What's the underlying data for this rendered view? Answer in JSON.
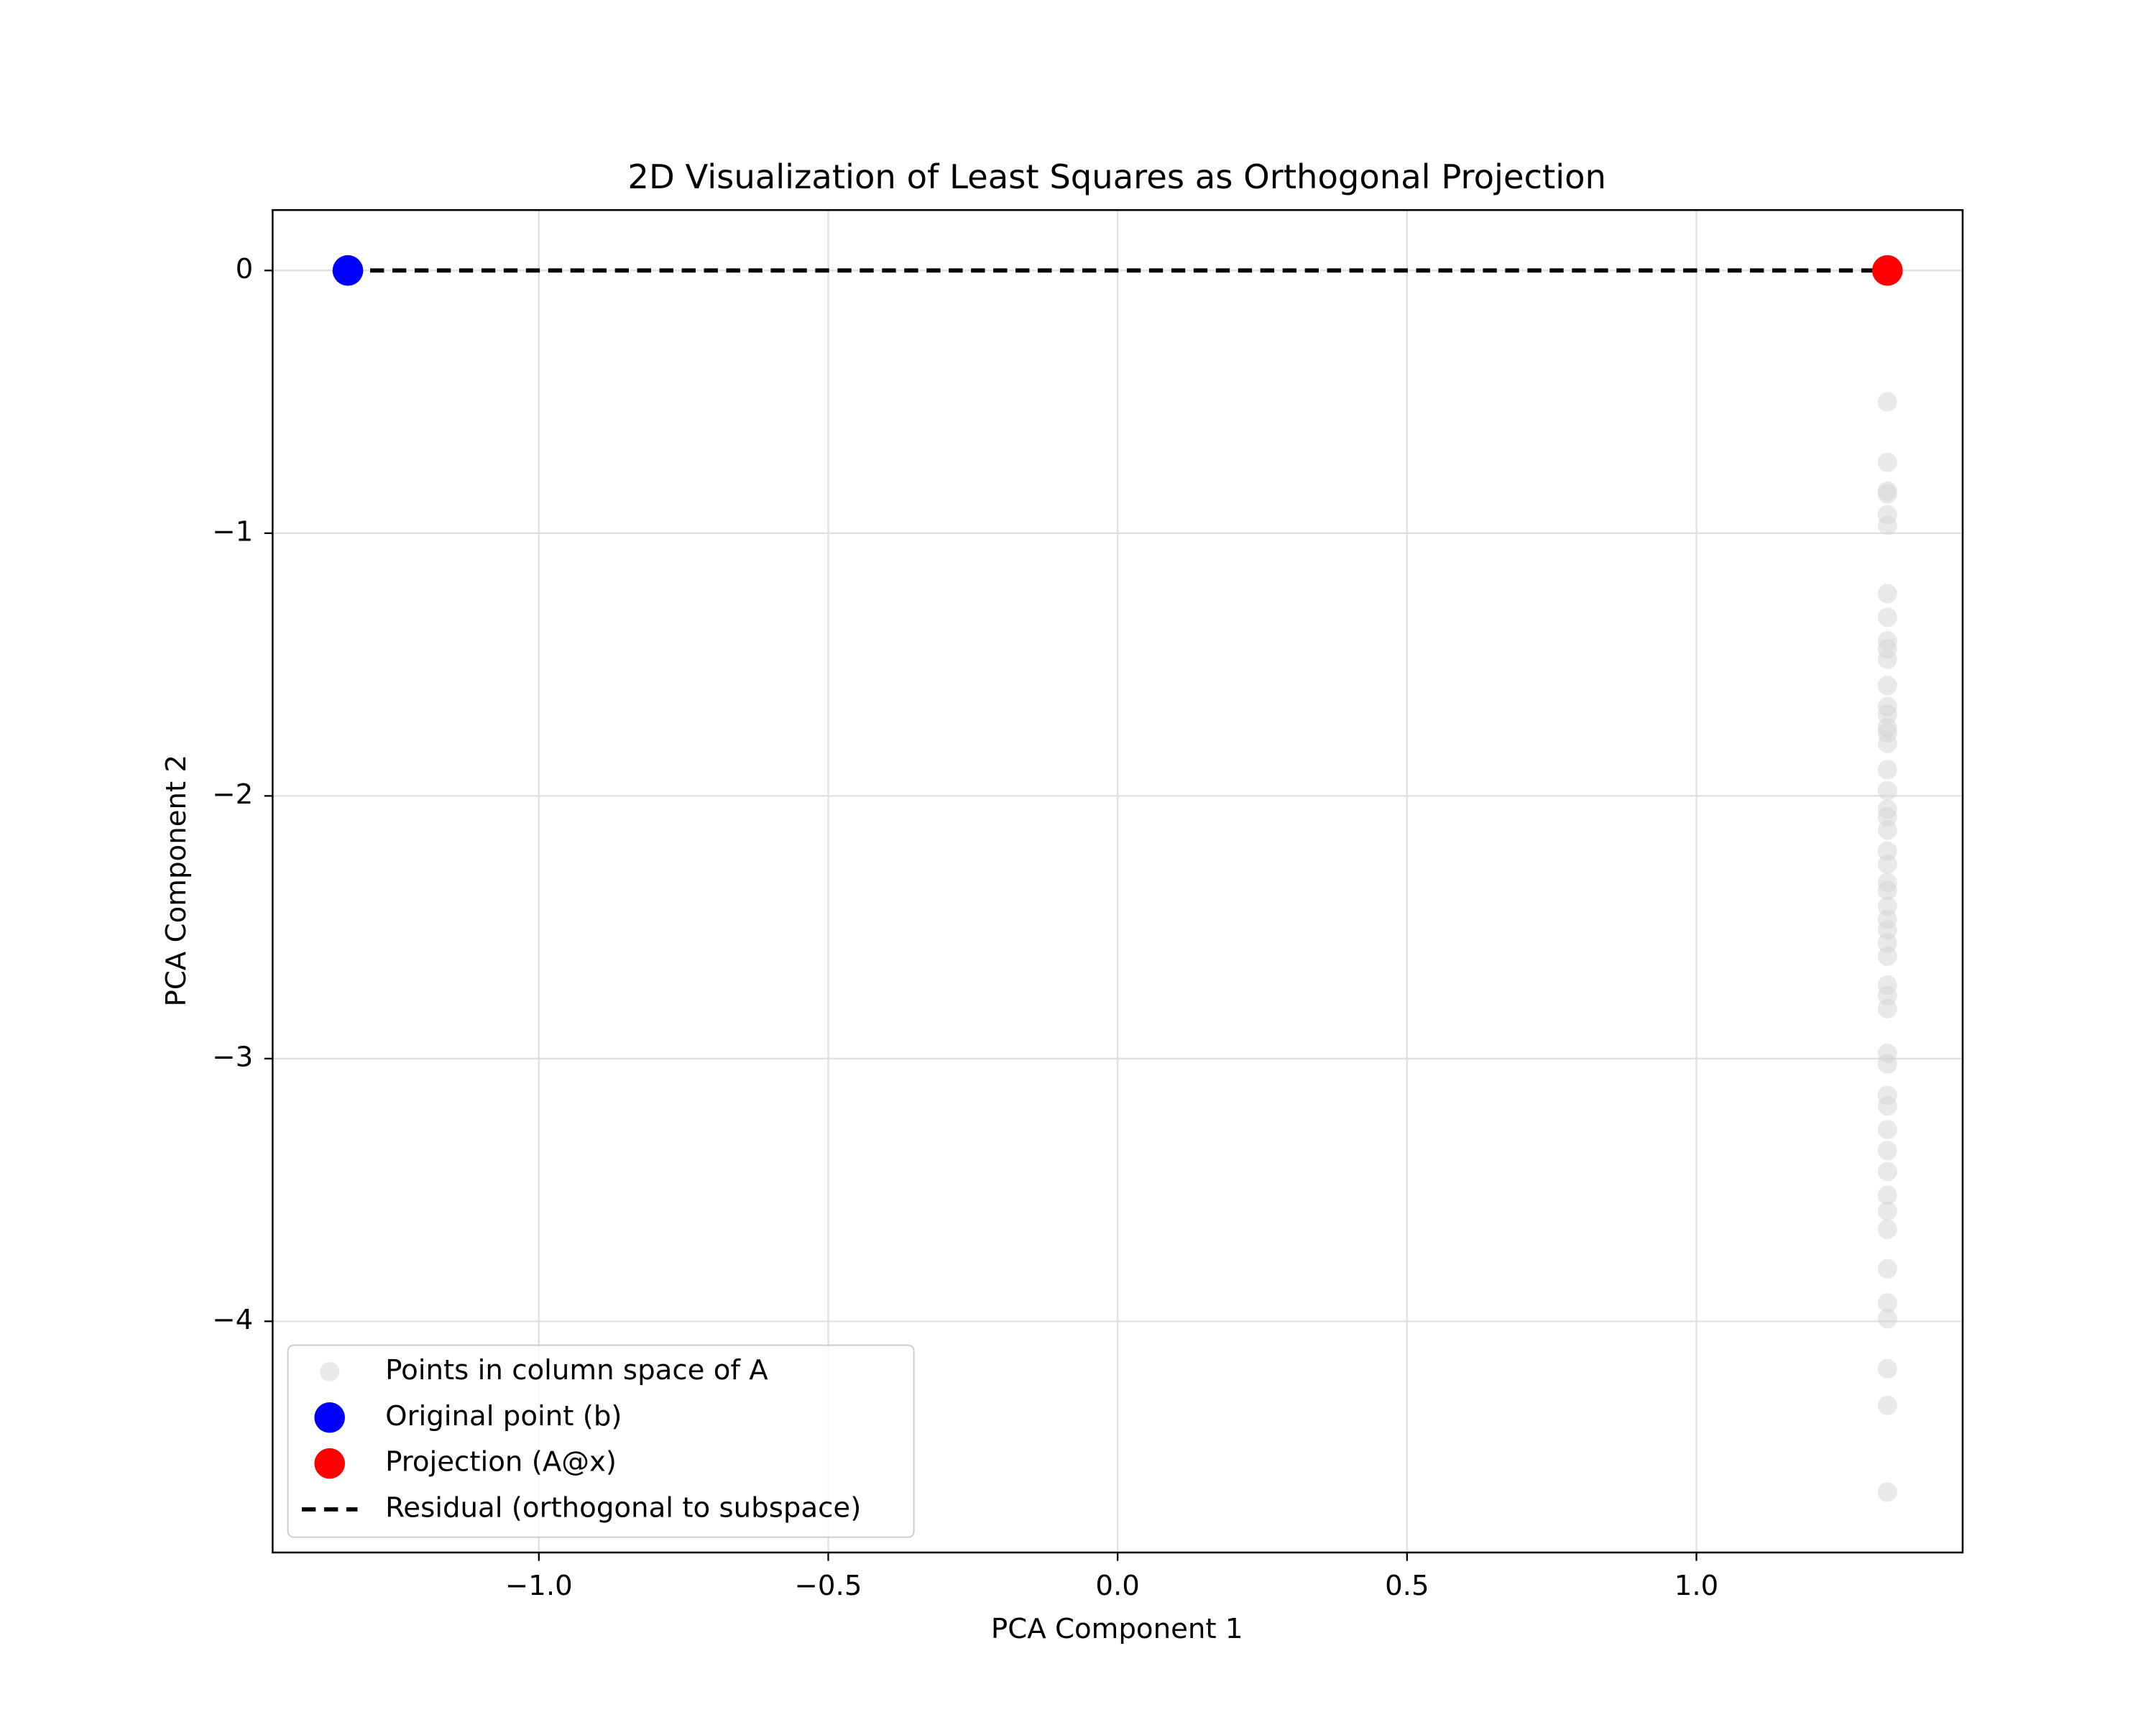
{
  "chart_data": {
    "type": "scatter",
    "title": "2D Visualization of Least Squares as Orthogonal Projection",
    "x_label": "PCA Component 1",
    "y_label": "PCA Component 2",
    "xlim": [
      -1.46,
      1.46
    ],
    "ylim": [
      -4.88,
      0.23
    ],
    "xticks": [
      {
        "value": -1,
        "label": "−1.0"
      },
      {
        "value": -0.5,
        "label": "−0.5"
      },
      {
        "value": 0,
        "label": "0.0"
      },
      0.5,
      {
        "value": 1,
        "label": "1.0"
      }
    ],
    "yticks": [
      0,
      {
        "value": -1,
        "label": "−1"
      },
      {
        "value": -2,
        "label": "−2"
      },
      {
        "value": -3,
        "label": "−3"
      },
      {
        "value": -4,
        "label": "−4"
      }
    ],
    "grid": true,
    "legend": "lower left",
    "series": [
      {
        "name": "Points in column space of A",
        "kind": "scatter",
        "color": "#d3d3d3",
        "opacity": 0.5,
        "size": 7,
        "x": [
          1.33,
          1.33,
          1.33,
          1.33,
          1.33,
          1.33,
          1.33,
          1.33,
          1.33,
          1.33,
          1.33,
          1.33,
          1.33,
          1.33,
          1.33,
          1.33,
          1.33,
          1.33,
          1.33,
          1.33,
          1.33,
          1.33,
          1.33,
          1.33,
          1.33,
          1.33,
          1.33,
          1.33,
          1.33,
          1.33,
          1.33,
          1.33,
          1.33,
          1.33,
          1.33,
          1.33,
          1.33,
          1.33,
          1.33,
          1.33,
          1.33,
          1.33,
          1.33,
          1.33,
          1.33,
          1.33,
          1.33,
          1.33,
          1.33,
          1.33
        ],
        "y": [
          -0.5,
          -0.73,
          -0.84,
          -0.85,
          -0.93,
          -0.97,
          -1.23,
          -1.32,
          -1.41,
          -1.44,
          -1.48,
          -1.58,
          -1.66,
          -1.69,
          -1.74,
          -1.76,
          -1.8,
          -1.9,
          -1.98,
          -2.05,
          -2.08,
          -2.13,
          -2.21,
          -2.26,
          -2.33,
          -2.36,
          -2.42,
          -2.47,
          -2.51,
          -2.56,
          -2.61,
          -2.72,
          -2.76,
          -2.81,
          -2.98,
          -3.02,
          -3.14,
          -3.18,
          -3.27,
          -3.35,
          -3.43,
          -3.52,
          -3.58,
          -3.65,
          -3.8,
          -3.93,
          -3.99,
          -4.18,
          -4.32,
          -4.65
        ]
      },
      {
        "name": "Original point (b)",
        "kind": "scatter",
        "color": "#0000ff",
        "opacity": 1,
        "size": 11,
        "x": [
          -1.33
        ],
        "y": [
          0
        ]
      },
      {
        "name": "Projection (A@x)",
        "kind": "scatter",
        "color": "#ff0000",
        "opacity": 1,
        "size": 11,
        "x": [
          1.33
        ],
        "y": [
          0
        ]
      },
      {
        "name": "Residual (orthogonal to subspace)",
        "kind": "line",
        "color": "#000000",
        "dash": "10,6",
        "x": [
          -1.33,
          1.33
        ],
        "y": [
          0,
          0
        ]
      }
    ]
  }
}
